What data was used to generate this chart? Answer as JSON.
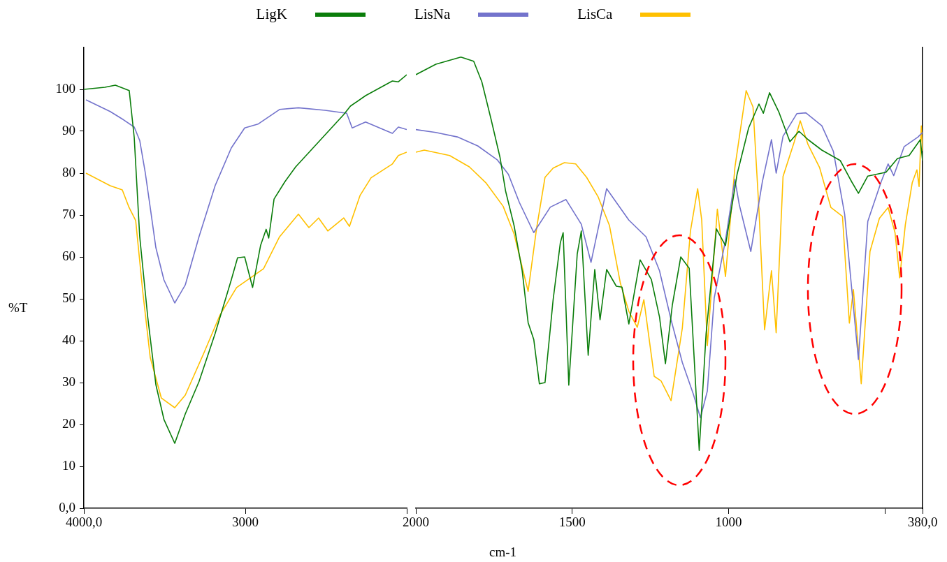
{
  "chart_data": [
    {
      "type": "line",
      "ylabel": "%T",
      "xlim": [
        4000,
        2000
      ],
      "xticks": [
        {
          "value": 4000,
          "label": "4000,0"
        },
        3000,
        {
          "value": 2000,
          "label": null
        }
      ],
      "ylim": [
        0,
        110
      ],
      "yticks": [
        {
          "value": 0,
          "label": "0,0"
        },
        10,
        20,
        30,
        40,
        50,
        60,
        70,
        80,
        90,
        100
      ],
      "grid": false,
      "legend": "top",
      "marker": "none",
      "line_style": "solid",
      "series": [
        {
          "name": "LigK",
          "color": "#0a7d0a",
          "x": [
            4000,
            3870,
            3805,
            3719,
            3688,
            3654,
            3604,
            3554,
            3504,
            3437,
            3372,
            3287,
            3187,
            3087,
            3048,
            3004,
            2955,
            2905,
            2871,
            2855,
            2822,
            2754,
            2688,
            2538,
            2390,
            2349,
            2255,
            2089,
            2052,
            2000
          ],
          "values": [
            100,
            100.5,
            101,
            99.7,
            88.5,
            64.8,
            45.5,
            29.5,
            21.2,
            15.5,
            22.5,
            30.2,
            41.7,
            54.5,
            59.8,
            60,
            52.7,
            62.8,
            66.6,
            64.5,
            73.8,
            78,
            81.5,
            87.8,
            94,
            96,
            98.5,
            102,
            101.8,
            103.5
          ]
        },
        {
          "name": "LisNa",
          "color": "#7373cc",
          "x": [
            3987,
            3837,
            3753,
            3688,
            3654,
            3620,
            3589,
            3554,
            3504,
            3437,
            3372,
            3287,
            3187,
            3087,
            3004,
            2922,
            2788,
            2671,
            2506,
            2372,
            2338,
            2255,
            2089,
            2052,
            2000
          ],
          "values": [
            97.5,
            94.7,
            92.7,
            91,
            87.8,
            80.2,
            71.8,
            62.2,
            54.5,
            49,
            53.3,
            64.8,
            77,
            86,
            90.8,
            91.7,
            95.2,
            95.6,
            95,
            94.3,
            90.8,
            92.2,
            89.5,
            91,
            90.4
          ]
        },
        {
          "name": "LisCa",
          "color": "#ffc000",
          "x": [
            3987,
            3837,
            3762,
            3720,
            3679,
            3636,
            3589,
            3520,
            3437,
            3372,
            3255,
            3156,
            3054,
            2887,
            2788,
            2671,
            2606,
            2546,
            2489,
            2390,
            2355,
            2289,
            2221,
            2089,
            2052,
            2000
          ],
          "values": [
            80,
            77,
            76,
            71.8,
            68.7,
            52,
            36,
            26.3,
            24,
            27,
            37.2,
            46.2,
            52.7,
            57.2,
            64.8,
            70.2,
            67,
            69.3,
            66.2,
            69.3,
            67.3,
            74.7,
            78.9,
            82.2,
            84.2,
            85
          ]
        }
      ]
    },
    {
      "type": "line",
      "xlabel": "cm-1",
      "xlim": [
        2000,
        380
      ],
      "xticks": [
        2000,
        1500,
        1000,
        {
          "value": 500,
          "label": null
        },
        {
          "value": 380,
          "label": "380,0"
        }
      ],
      "ylim": [
        0,
        110
      ],
      "tick_labels": "x",
      "grid": false,
      "marker": "none",
      "line_style": "solid",
      "series": [
        {
          "color": "#0a7d0a",
          "x": [
            2000,
            1936,
            1856,
            1815,
            1789,
            1759,
            1731,
            1713,
            1686,
            1660,
            1641,
            1623,
            1605,
            1587,
            1561,
            1538,
            1529,
            1511,
            1484,
            1471,
            1449,
            1428,
            1411,
            1390,
            1359,
            1341,
            1319,
            1283,
            1247,
            1221,
            1202,
            1180,
            1153,
            1126,
            1094,
            1072,
            1039,
            1010,
            973,
            936,
            903,
            889,
            869,
            840,
            804,
            775,
            746,
            702,
            643,
            607,
            585,
            555,
            497,
            460,
            423,
            387,
            380
          ],
          "values": [
            103.5,
            106,
            107.7,
            106.7,
            101.8,
            92.7,
            83.8,
            75.7,
            67.5,
            56.7,
            44.3,
            40.3,
            29.7,
            30,
            49.8,
            63.4,
            65.8,
            29.4,
            60.7,
            66.2,
            36.5,
            57,
            45,
            57,
            53,
            52.8,
            44,
            59.3,
            54.6,
            45.7,
            34.5,
            48.5,
            60,
            57.3,
            13.8,
            41.7,
            66.7,
            62.7,
            79.7,
            90.8,
            96.5,
            94.3,
            99.2,
            94.7,
            87.5,
            90,
            88,
            85.5,
            83,
            78,
            75.2,
            79.3,
            80.2,
            83.5,
            84.2,
            88,
            83
          ]
        },
        {
          "color": "#7373cc",
          "x": [
            2000,
            1936,
            1865,
            1802,
            1740,
            1704,
            1669,
            1623,
            1570,
            1520,
            1471,
            1440,
            1390,
            1319,
            1264,
            1221,
            1184,
            1148,
            1113,
            1090,
            1068,
            1046,
            1010,
            980,
            966,
            929,
            892,
            863,
            848,
            826,
            782,
            753,
            702,
            665,
            629,
            585,
            555,
            512,
            490,
            472,
            439,
            395,
            380
          ],
          "values": [
            90.4,
            89.7,
            88.6,
            86.5,
            83.2,
            79.7,
            73,
            65.8,
            71.9,
            73.7,
            67.8,
            58.7,
            76.3,
            68.8,
            64.8,
            56.7,
            45,
            34.8,
            27.3,
            21.6,
            28,
            50.2,
            64,
            78.5,
            72.5,
            61.3,
            78,
            88,
            80,
            88.8,
            94.2,
            94.4,
            91.3,
            85.2,
            70.2,
            35.5,
            68.5,
            78,
            82.2,
            79.4,
            86.3,
            88.6,
            89.7
          ]
        },
        {
          "color": "#ffc000",
          "x": [
            2000,
            1973,
            1892,
            1829,
            1776,
            1721,
            1686,
            1641,
            1614,
            1587,
            1561,
            1525,
            1489,
            1454,
            1417,
            1381,
            1346,
            1319,
            1292,
            1271,
            1238,
            1216,
            1184,
            1148,
            1122,
            1099,
            1086,
            1068,
            1036,
            1010,
            980,
            944,
            922,
            903,
            885,
            863,
            848,
            826,
            790,
            771,
            746,
            709,
            673,
            636,
            614,
            601,
            576,
            548,
            518,
            490,
            468,
            453,
            435,
            413,
            398,
            391,
            384,
            380
          ],
          "values": [
            85,
            85.5,
            84.2,
            81.5,
            77.7,
            72.1,
            65.5,
            51.8,
            66.8,
            79,
            81.2,
            82.5,
            82.2,
            79,
            74.3,
            67.5,
            53.7,
            47,
            43.2,
            49.8,
            31.5,
            30.4,
            25.7,
            43,
            66.2,
            76.3,
            68.8,
            38.8,
            71.4,
            55.3,
            81.3,
            99.7,
            95.8,
            71.3,
            42.6,
            56.7,
            41.9,
            79.2,
            87.5,
            92.5,
            86.8,
            81.3,
            71.8,
            69.7,
            44.2,
            52.2,
            29.7,
            61.3,
            69.2,
            71.8,
            65.8,
            55,
            67.7,
            77.7,
            80.8,
            76.8,
            91.3,
            85.3
          ]
        }
      ]
    }
  ]
}
